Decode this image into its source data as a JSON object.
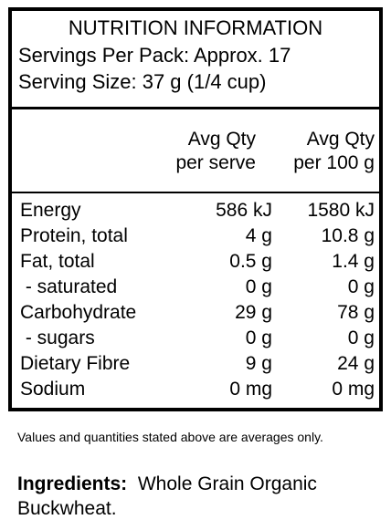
{
  "panel": {
    "title": "NUTRITION INFORMATION",
    "servings_per_pack": "Servings Per Pack: Approx. 17",
    "serving_size": "Serving Size: 37 g (1/4 cup)",
    "columns": {
      "per_serve": [
        "Avg Qty",
        "per serve"
      ],
      "per_100g": [
        "Avg Qty",
        "per 100 g"
      ]
    },
    "rows": [
      {
        "name": "Energy",
        "serve": "586 kJ",
        "per100": "1580 kJ"
      },
      {
        "name": "Protein, total",
        "serve": "4 g",
        "per100": "10.8 g"
      },
      {
        "name": "Fat, total",
        "serve": "0.5 g",
        "per100": "1.4 g"
      },
      {
        "name": " - saturated",
        "serve": "0 g",
        "per100": "0 g"
      },
      {
        "name": "Carbohydrate",
        "serve": "29 g",
        "per100": "78 g"
      },
      {
        "name": " - sugars",
        "serve": "0 g",
        "per100": "0 g"
      },
      {
        "name": "Dietary Fibre",
        "serve": "9 g",
        "per100": "24 g"
      },
      {
        "name": "Sodium",
        "serve": "0 mg",
        "per100": "0 mg"
      }
    ]
  },
  "footnote": "Values and quantities stated above are averages only.",
  "ingredients": {
    "label": "Ingredients:",
    "text": "Whole Grain Organic Buckwheat."
  }
}
